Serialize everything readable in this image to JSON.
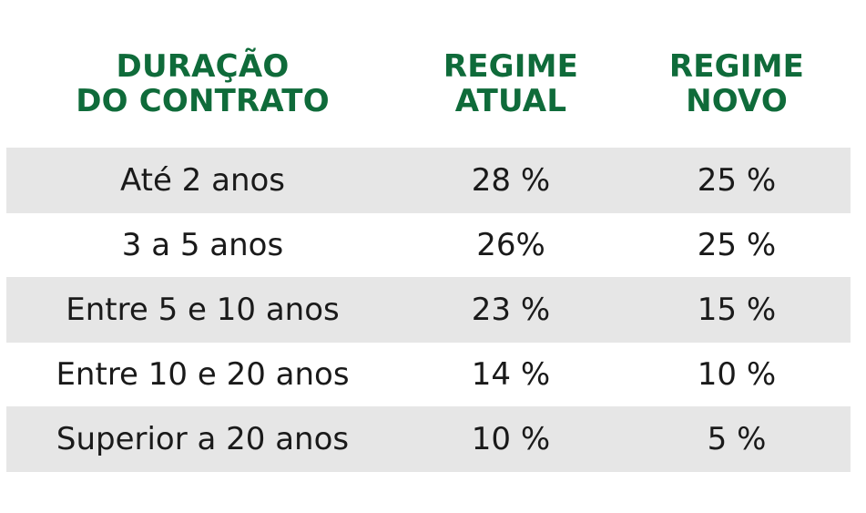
{
  "table": {
    "headers": [
      [
        "DURAÇÃO",
        "DO CONTRATO"
      ],
      [
        "REGIME",
        "ATUAL"
      ],
      [
        "REGIME",
        "NOVO"
      ]
    ],
    "rows": [
      [
        "Até 2 anos",
        "28 %",
        "25 %"
      ],
      [
        "3 a 5 anos",
        "26%",
        "25 %"
      ],
      [
        "Entre 5 e 10 anos",
        "23 %",
        "15 %"
      ],
      [
        "Entre 10 e 20 anos",
        "14 %",
        "10 %"
      ],
      [
        "Superior a 20 anos",
        "10 %",
        "5 %"
      ]
    ]
  },
  "colors": {
    "header_text": "#0f6b3a",
    "row_shade": "#e6e6e6",
    "body_text": "#1a1a1a"
  }
}
